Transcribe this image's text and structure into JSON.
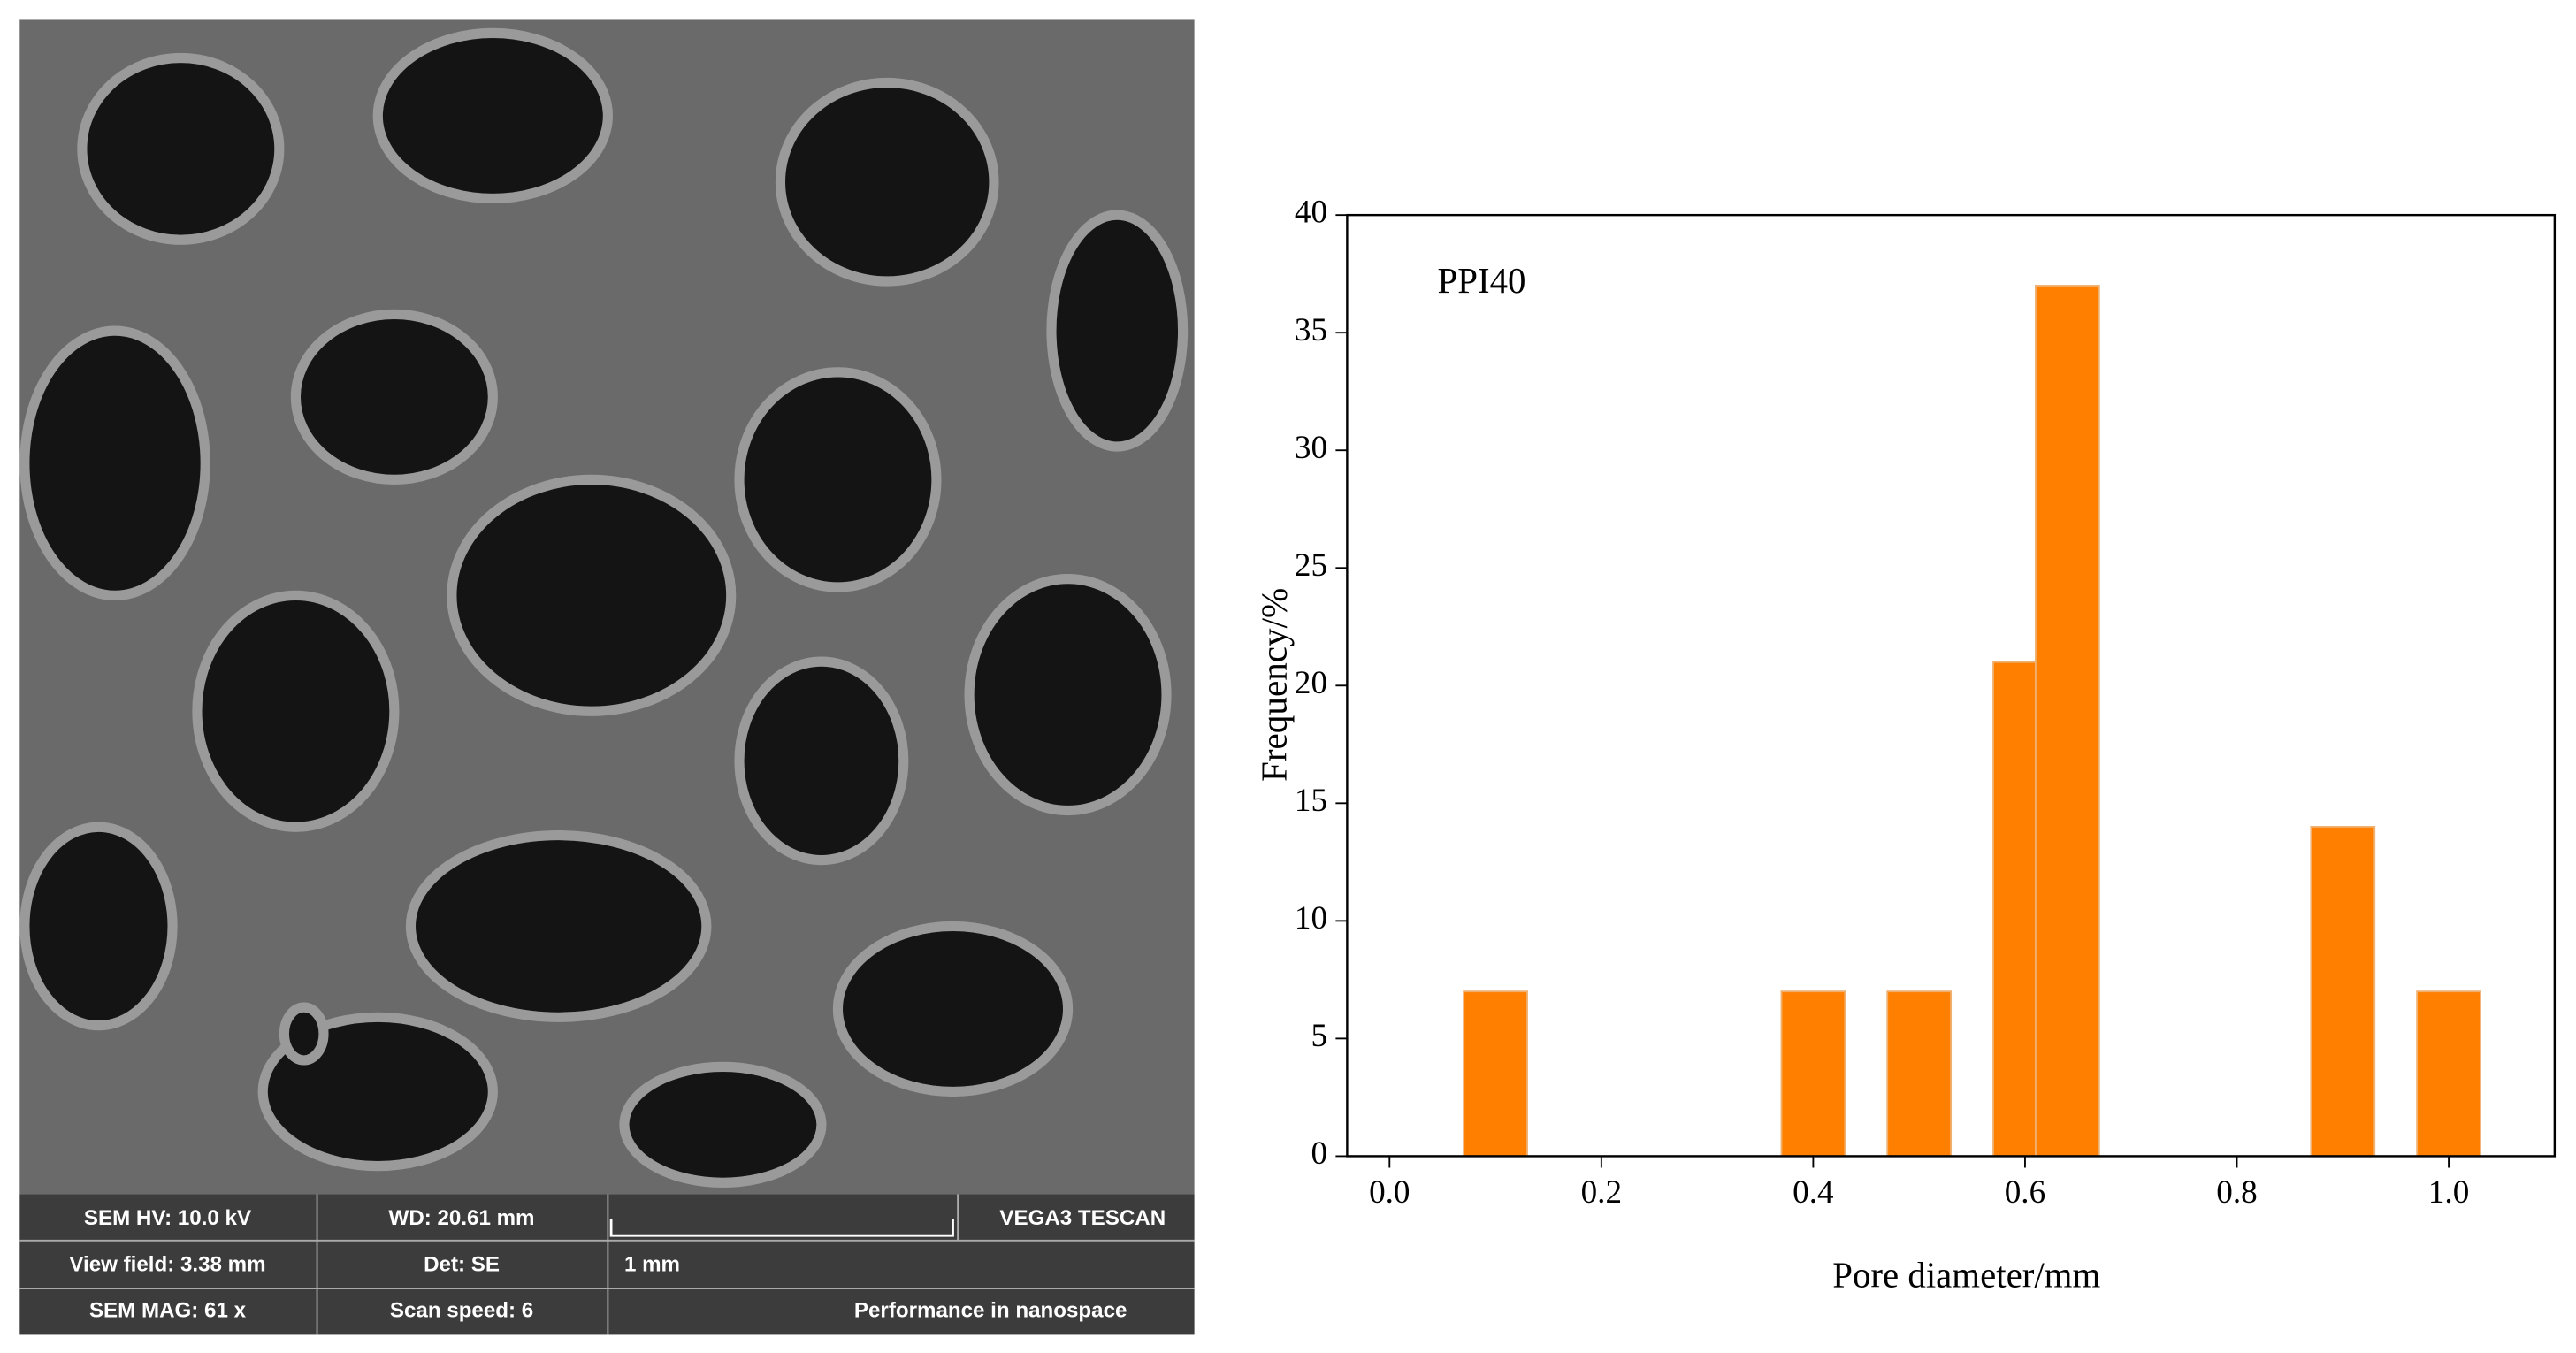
{
  "chart_data": {
    "type": "histogram",
    "annotation": "PPI40",
    "x_label": "Pore diameter/mm",
    "y_label": "Frequency/%",
    "bins": [
      0.07,
      0.13,
      0.37,
      0.43,
      0.47,
      0.53,
      0.57,
      0.61,
      0.67,
      0.87,
      0.93,
      0.97,
      1.03
    ],
    "counts": [
      7,
      0,
      7,
      0,
      7,
      0,
      21,
      37,
      0,
      14,
      0,
      7
    ],
    "color": "#ff8000",
    "xlim": [
      -0.04,
      1.1
    ],
    "ylim": [
      0,
      40
    ],
    "xticks": [
      {
        "value": 0,
        "label": "0.0"
      },
      0.2,
      0.4,
      0.6,
      0.8,
      {
        "value": 1,
        "label": "1.0"
      }
    ],
    "yticks": [
      0,
      5,
      10,
      15,
      20,
      25,
      30,
      35,
      40
    ]
  },
  "sem_info": {
    "rows": [
      [
        "SEM HV: 10.0 kV",
        "WD: 20.61 mm",
        "VEGA3 TESCAN"
      ],
      [
        "View field: 3.38 mm",
        "Det: SE",
        "1 mm"
      ],
      [
        "SEM MAG: 61 x",
        "Scan speed: 6",
        "Performance in nanospace"
      ]
    ]
  }
}
